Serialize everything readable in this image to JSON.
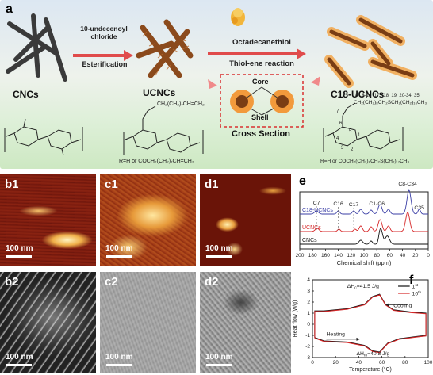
{
  "panel_a": {
    "label": "a",
    "step1_top": "10-undecenoyl",
    "step1_top2": "chloride",
    "step1_bottom": "Esterification",
    "step2_top": "Octadecanethiol",
    "step2_bottom": "Thiol-ene reaction",
    "names": [
      "CNCs",
      "UCNCs",
      "C18-UCNCs"
    ],
    "core_label": "Core",
    "shell_label": "Shell",
    "cross_section": "Cross Section",
    "r_ucncs": "R=H or COCH₂(CH₂)₇CH=CH₂",
    "r_c18": "R=H or COCH₂(CH₂)₈CH₂S(CH₂)₁₇CH₃",
    "c18_numbers": "8   8-16  17   18  19  20-34  35",
    "c18_chain": "CH₂(CH₂)₈CH₂SCH₂(CH₂)₁₆CH₃",
    "ucnc_chain": "CH₂(CH₂)₇CH=CH₂",
    "ring_numbers": [
      "7",
      "6",
      "5",
      "4",
      "1",
      "3",
      "2"
    ]
  },
  "tiles": {
    "b1": {
      "label": "b1",
      "scale": "100 nm"
    },
    "c1": {
      "label": "c1",
      "scale": "100 nm"
    },
    "d1": {
      "label": "d1",
      "scale": "100 nm"
    },
    "b2": {
      "label": "b2",
      "scale": "100 nm"
    },
    "c2": {
      "label": "c2",
      "scale": "100 nm"
    },
    "d2": {
      "label": "d2",
      "scale": "100 nm"
    }
  },
  "panel_e": {
    "label": "e",
    "xlabel": "Chemical shift (ppm)",
    "series_names": [
      "C18-UCNCs",
      "UCNCs",
      "CNCs"
    ],
    "peak_labels": [
      "C7",
      "C16",
      "C17",
      "C1-C6",
      "C8-C34",
      "C35"
    ],
    "xticks": [
      "200",
      "180",
      "160",
      "140",
      "120",
      "100",
      "80",
      "60",
      "40",
      "20",
      "0"
    ]
  },
  "panel_f": {
    "label": "f",
    "xlabel": "Temperature (°C)",
    "ylabel": "Heat flow (w/g)",
    "ann_hc": "ΔH",
    "ann_hc_sub": "c",
    "ann_hc_val": "=41.5 J/g",
    "ann_hm": "ΔH",
    "ann_hm_sub": "m",
    "ann_hm_val": "=40.8 J/g",
    "heating": "Heating",
    "cooling": "Cooling",
    "legend": [
      "1",
      "10"
    ],
    "legend_sup": [
      "st",
      "th"
    ]
  },
  "chart_data": [
    {
      "type": "line",
      "title": "",
      "xlabel": "Chemical shift (ppm)",
      "ylabel": "",
      "xlim": [
        200,
        0
      ],
      "series": [
        {
          "name": "C18-UCNCs",
          "color": "#3b3fa6",
          "peaks_ppm": [
            174,
            140,
            116,
            105,
            89,
            75,
            62,
            30,
            14
          ]
        },
        {
          "name": "UCNCs",
          "color": "#d62728",
          "peaks_ppm": [
            173,
            139,
            114,
            105,
            89,
            75,
            62,
            32
          ]
        },
        {
          "name": "CNCs",
          "color": "#111111",
          "peaks_ppm": [
            105,
            89,
            75,
            72,
            65,
            62
          ]
        }
      ]
    },
    {
      "type": "line",
      "title": "",
      "xlabel": "Temperature (°C)",
      "ylabel": "Heat flow (w/g)",
      "xlim": [
        0,
        100
      ],
      "ylim": [
        -3,
        4
      ],
      "xticks": [
        0,
        20,
        40,
        60,
        80,
        100
      ],
      "yticks": [
        -3,
        -2,
        -1,
        0,
        1,
        2,
        3,
        4
      ],
      "series": [
        {
          "name": "1st",
          "color": "#111111",
          "heating": [
            [
              2,
              -1.2
            ],
            [
              10,
              -1.5
            ],
            [
              30,
              -1.6
            ],
            [
              45,
              -1.9
            ],
            [
              52,
              -2.4
            ],
            [
              58,
              -2.5
            ],
            [
              65,
              -1.7
            ],
            [
              75,
              -1.3
            ],
            [
              90,
              -1.1
            ],
            [
              98,
              -1.0
            ]
          ],
          "cooling": [
            [
              98,
              1.0
            ],
            [
              85,
              1.1
            ],
            [
              70,
              1.3
            ],
            [
              63,
              1.8
            ],
            [
              58,
              2.7
            ],
            [
              52,
              2.5
            ],
            [
              45,
              1.8
            ],
            [
              30,
              1.4
            ],
            [
              10,
              1.2
            ],
            [
              2,
              1.2
            ]
          ]
        },
        {
          "name": "10th",
          "color": "#d62728",
          "heating": [
            [
              2,
              -1.25
            ],
            [
              10,
              -1.55
            ],
            [
              30,
              -1.65
            ],
            [
              45,
              -1.95
            ],
            [
              52,
              -2.45
            ],
            [
              58,
              -2.55
            ],
            [
              65,
              -1.75
            ],
            [
              75,
              -1.35
            ],
            [
              90,
              -1.15
            ],
            [
              98,
              -1.05
            ]
          ],
          "cooling": [
            [
              98,
              0.95
            ],
            [
              85,
              1.05
            ],
            [
              70,
              1.25
            ],
            [
              63,
              1.75
            ],
            [
              58,
              2.65
            ],
            [
              52,
              2.45
            ],
            [
              45,
              1.75
            ],
            [
              30,
              1.35
            ],
            [
              10,
              1.15
            ],
            [
              2,
              1.15
            ]
          ]
        }
      ]
    }
  ]
}
